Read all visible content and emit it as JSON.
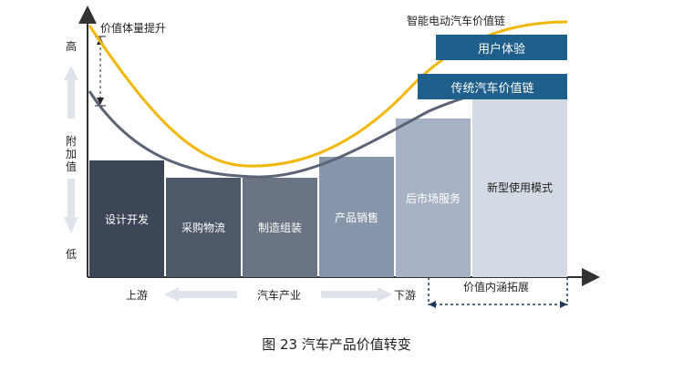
{
  "chart_data": {
    "type": "diagram",
    "y_axis": {
      "high_label": "高",
      "mid_label": "附\n加\n值",
      "low_label": "低"
    },
    "annotation_value_increase": "价值体量提升",
    "curves": [
      {
        "name": "智能电动汽车价值链",
        "color": "#f2b705"
      },
      {
        "name": "传统汽车价值链",
        "color": "#5b6376"
      }
    ],
    "legend_boxes": [
      "用户体验",
      "传统汽车价值链"
    ],
    "stages": [
      {
        "label": "设计开发",
        "color": "#3c4656"
      },
      {
        "label": "采购物流",
        "color": "#4d5869"
      },
      {
        "label": "制造组装",
        "color": "#6b7483"
      },
      {
        "label": "产品销售",
        "color": "#8896ab"
      },
      {
        "label": "后市场服务",
        "color": "#a7b3c4"
      },
      {
        "label": "新型使用模式",
        "color": "#d3dae4"
      }
    ],
    "bottom_labels": {
      "upstream": "上游",
      "industry": "汽车产业",
      "downstream": "下游",
      "extension": "价值内涵拓展"
    }
  },
  "caption": "图 23  汽车产品价值转变"
}
